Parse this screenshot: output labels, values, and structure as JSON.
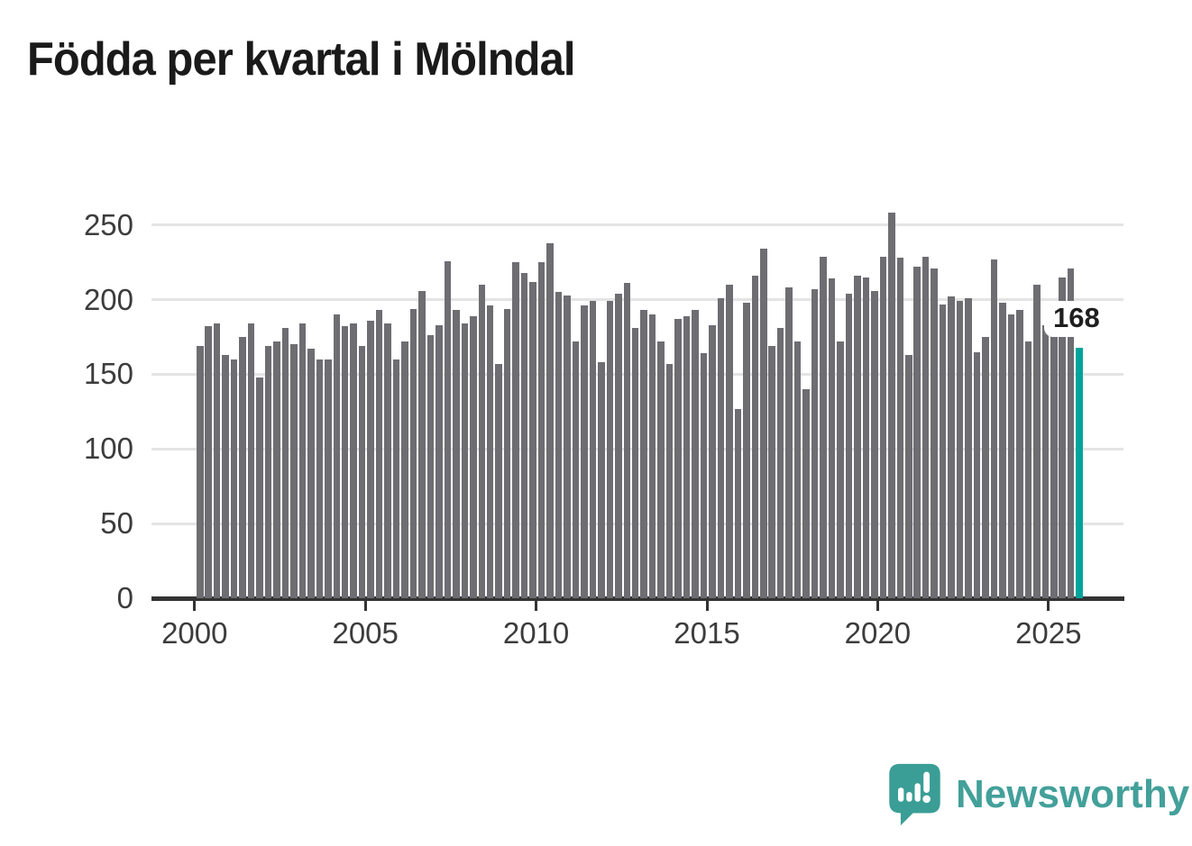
{
  "title": "Födda per kvartal i Mölndal",
  "annotation": {
    "latest_value_label": "168"
  },
  "branding": {
    "logo_text": "Newsworthy",
    "logo_icon": "newsworthy-speech-bubble-chart-icon"
  },
  "colors": {
    "bar": "#6d6d72",
    "highlight": "#00a49b",
    "grid": "#e4e4e4",
    "axis": "#333333",
    "tick_text": "#3c3c3c",
    "title_text": "#1a1a1a",
    "logo_teal": "#43a09a",
    "annotation_bg": "#ffffff",
    "annotation_text": "#1f1f1f"
  },
  "chart_data": {
    "type": "bar",
    "title": "Födda per kvartal i Mölndal",
    "frequency": "quarterly",
    "start_period": "2000-Q1",
    "end_period": "2025-Q4",
    "values": [
      169,
      182,
      184,
      163,
      160,
      175,
      184,
      148,
      169,
      172,
      181,
      170,
      184,
      167,
      160,
      160,
      190,
      182,
      184,
      169,
      186,
      193,
      184,
      160,
      172,
      194,
      206,
      176,
      183,
      226,
      193,
      184,
      189,
      210,
      196,
      157,
      194,
      225,
      218,
      212,
      225,
      238,
      205,
      203,
      172,
      196,
      199,
      158,
      199,
      204,
      211,
      181,
      193,
      190,
      172,
      157,
      187,
      189,
      193,
      164,
      183,
      201,
      210,
      127,
      198,
      216,
      234,
      169,
      181,
      208,
      172,
      140,
      207,
      229,
      214,
      172,
      204,
      216,
      215,
      206,
      229,
      258,
      228,
      163,
      222,
      229,
      221,
      197,
      202,
      199,
      201,
      165,
      175,
      227,
      198,
      190,
      193,
      172,
      210,
      183,
      181,
      215,
      221,
      168
    ],
    "highlight_index": 103,
    "highlight_period": "2025-Q4",
    "highlight_value": 168,
    "xticks": [
      2000,
      2005,
      2010,
      2015,
      2020,
      2025
    ],
    "yticks": [
      0,
      50,
      100,
      150,
      200,
      250
    ],
    "ylim": [
      0,
      260
    ],
    "grid": "horizontal",
    "legend": "none",
    "xlabel": "",
    "ylabel": ""
  }
}
